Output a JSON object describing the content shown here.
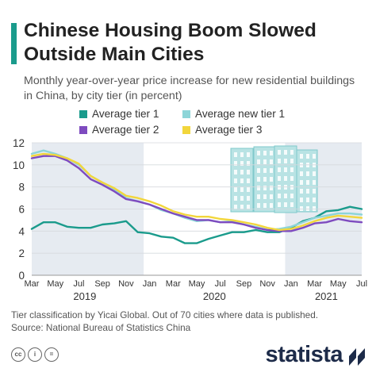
{
  "header": {
    "title": "Chinese Housing Boom Slowed Outside Main Cities",
    "subtitle": "Monthly year-over-year price increase for new residential buildings in China, by city tier (in percent)"
  },
  "legend": [
    {
      "label": "Average tier 1",
      "color": "#1a9b8c"
    },
    {
      "label": "Average new tier 1",
      "color": "#8dd5d8"
    },
    {
      "label": "Average tier 2",
      "color": "#7e4bbf"
    },
    {
      "label": "Average tier 3",
      "color": "#f2d63c"
    }
  ],
  "chart_data": {
    "type": "line",
    "x": [
      "2019-03",
      "2019-04",
      "2019-05",
      "2019-06",
      "2019-07",
      "2019-08",
      "2019-09",
      "2019-10",
      "2019-11",
      "2019-12",
      "2020-01",
      "2020-02",
      "2020-03",
      "2020-04",
      "2020-05",
      "2020-06",
      "2020-07",
      "2020-08",
      "2020-09",
      "2020-10",
      "2020-11",
      "2020-12",
      "2021-01",
      "2021-02",
      "2021-03",
      "2021-04",
      "2021-05",
      "2021-06",
      "2021-07"
    ],
    "x_tick_labels": [
      "Mar",
      "May",
      "Jul",
      "Sep",
      "Nov",
      "Jan",
      "Mar",
      "May",
      "Jul",
      "Sep",
      "Nov",
      "Jan",
      "Mar",
      "May",
      "Jul"
    ],
    "year_labels": [
      "2019",
      "2020",
      "2021"
    ],
    "ylim": [
      0,
      12
    ],
    "y_ticks": [
      0,
      2,
      4,
      6,
      8,
      10,
      12
    ],
    "grid": true,
    "series": [
      {
        "name": "Average tier 1",
        "color": "#1a9b8c",
        "values": [
          4.2,
          4.8,
          4.8,
          4.4,
          4.3,
          4.3,
          4.6,
          4.7,
          4.9,
          3.9,
          3.8,
          3.5,
          3.4,
          2.9,
          2.9,
          3.3,
          3.6,
          3.9,
          3.9,
          4.1,
          3.9,
          3.9,
          4.3,
          4.9,
          5.2,
          5.8,
          5.9,
          6.2,
          6.0
        ]
      },
      {
        "name": "Average new tier 1",
        "color": "#8dd5d8",
        "values": [
          11.0,
          11.3,
          11.0,
          10.6,
          10.0,
          9.0,
          8.4,
          7.8,
          7.0,
          6.7,
          6.4,
          5.9,
          5.6,
          5.2,
          4.9,
          5.0,
          4.8,
          4.9,
          4.6,
          4.4,
          4.1,
          4.2,
          4.4,
          4.8,
          5.2,
          5.4,
          5.6,
          5.6,
          5.5
        ]
      },
      {
        "name": "Average tier 2",
        "color": "#7e4bbf",
        "values": [
          10.6,
          10.8,
          10.8,
          10.4,
          9.7,
          8.7,
          8.2,
          7.6,
          6.9,
          6.7,
          6.4,
          6.0,
          5.6,
          5.3,
          5.0,
          5.0,
          4.8,
          4.8,
          4.6,
          4.3,
          4.1,
          4.0,
          4.0,
          4.3,
          4.7,
          4.8,
          5.1,
          4.9,
          4.8
        ]
      },
      {
        "name": "Average tier 3",
        "color": "#f2d63c",
        "values": [
          10.8,
          11.0,
          10.9,
          10.6,
          10.1,
          9.0,
          8.4,
          7.9,
          7.2,
          7.0,
          6.7,
          6.3,
          5.8,
          5.5,
          5.3,
          5.3,
          5.1,
          5.0,
          4.8,
          4.6,
          4.3,
          4.1,
          4.2,
          4.5,
          4.9,
          5.2,
          5.4,
          5.3,
          5.2
        ]
      }
    ]
  },
  "footnote": {
    "line1": "Tier classification by Yicai Global. Out of 70 cities where data is published.",
    "line2": "Source: National Bureau of Statistics China"
  },
  "footer": {
    "cc_icons": [
      "cc-icon",
      "attribution-icon",
      "no-derivatives-icon"
    ],
    "cc_glyphs": [
      "cc",
      "i",
      "="
    ],
    "brand": "statista"
  }
}
